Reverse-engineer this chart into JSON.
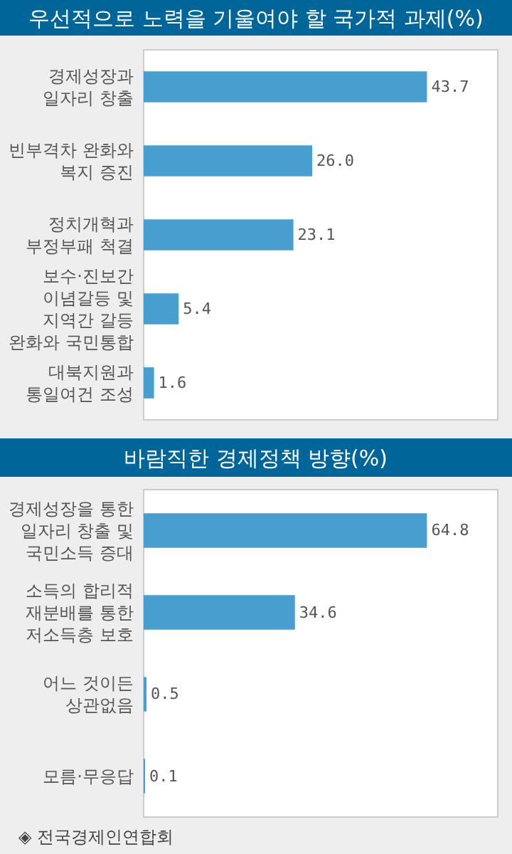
{
  "chart_data": [
    {
      "type": "bar",
      "orientation": "horizontal",
      "title": "우선적으로 노력을 기울여야 할 국가적 과제(%)",
      "categories": [
        "경제성장과 일자리 창출",
        "빈부격차 완화와 복지 증진",
        "정치개혁과 부정부패 척결",
        "보수·진보간 이념갈등 및 지역간 갈등 완화와 국민통합",
        "대북지원과 통일여건 조성"
      ],
      "values": [
        43.7,
        26.0,
        23.1,
        5.4,
        1.6
      ],
      "value_labels": [
        "43.7",
        "26.0",
        "23.1",
        "5.4",
        "1.6"
      ],
      "color": "#489ecf"
    },
    {
      "type": "bar",
      "orientation": "horizontal",
      "title": "바람직한 경제정책 방향(%)",
      "categories": [
        "경제성장을 통한 일자리 창출 및 국민소득 증대",
        "소득의 합리적 재분배를 통한 저소득층 보호",
        "어느 것이든 상관없음",
        "모름·무응답"
      ],
      "values": [
        64.8,
        34.6,
        0.5,
        0.1
      ],
      "value_labels": [
        "64.8",
        "34.6",
        "0.5",
        "0.1"
      ],
      "color": "#489ecf",
      "annotations": [
        "◈ 전국경제인연합회"
      ]
    }
  ]
}
